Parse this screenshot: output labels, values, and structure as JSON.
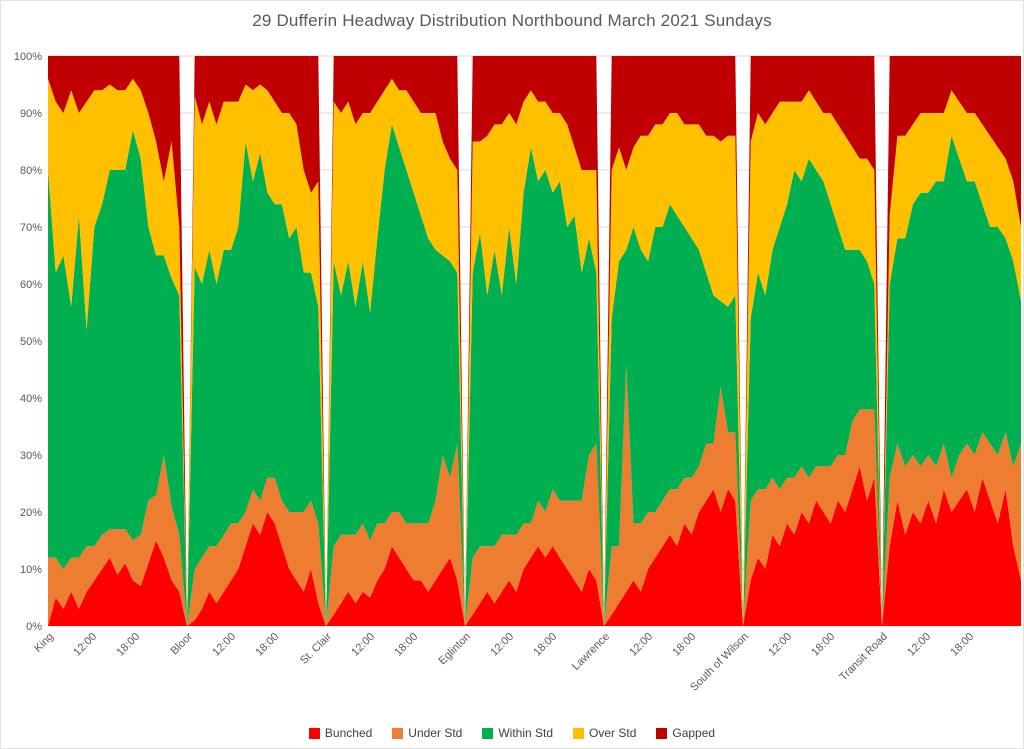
{
  "chart_data": {
    "type": "area",
    "stacked": "percent",
    "title": "29 Dufferin  Headway Distribution Northbound March 2021 Sundays",
    "title_color": "#595959",
    "axis_label_color": "#595959",
    "gridline_color": "#d9d9d9",
    "background_color": "#ffffff",
    "ylim": [
      0,
      100
    ],
    "y_ticks": [
      "0%",
      "10%",
      "20%",
      "30%",
      "40%",
      "50%",
      "60%",
      "70%",
      "80%",
      "90%",
      "100%"
    ],
    "block_time_ticks": [
      "12:00",
      "18:00"
    ],
    "legend_position": "bottom",
    "series": [
      {
        "name": "Bunched",
        "color": "#ff0000"
      },
      {
        "name": "Under Std",
        "color": "#ed7d31"
      },
      {
        "name": "Within Std",
        "color": "#00b050"
      },
      {
        "name": "Over Std",
        "color": "#ffc000"
      },
      {
        "name": "Gapped",
        "color": "#c00000"
      }
    ],
    "blocks": [
      {
        "station": "King",
        "values": [
          [
            0,
            12,
            68,
            16,
            4
          ],
          [
            5,
            7,
            50,
            30,
            8
          ],
          [
            3,
            7,
            55,
            25,
            10
          ],
          [
            6,
            6,
            44,
            38,
            6
          ],
          [
            3,
            9,
            60,
            18,
            10
          ],
          [
            6,
            8,
            38,
            40,
            8
          ],
          [
            8,
            6,
            56,
            24,
            6
          ],
          [
            10,
            6,
            58,
            20,
            6
          ],
          [
            12,
            5,
            63,
            15,
            5
          ],
          [
            9,
            8,
            63,
            14,
            6
          ],
          [
            11,
            6,
            63,
            14,
            6
          ],
          [
            8,
            7,
            72,
            9,
            4
          ],
          [
            7,
            9,
            66,
            12,
            6
          ],
          [
            11,
            11,
            48,
            20,
            10
          ],
          [
            15,
            8,
            42,
            20,
            15
          ],
          [
            12,
            18,
            35,
            13,
            22
          ],
          [
            8,
            13,
            40,
            24,
            15
          ],
          [
            6,
            10,
            42,
            12,
            30
          ]
        ]
      },
      {
        "station": "Bloor",
        "values": [
          [
            1,
            9,
            53,
            30,
            7
          ],
          [
            3,
            9,
            48,
            28,
            12
          ],
          [
            6,
            8,
            52,
            26,
            8
          ],
          [
            4,
            10,
            46,
            28,
            12
          ],
          [
            6,
            10,
            50,
            26,
            8
          ],
          [
            8,
            10,
            48,
            26,
            8
          ],
          [
            10,
            8,
            52,
            22,
            8
          ],
          [
            14,
            6,
            65,
            10,
            5
          ],
          [
            18,
            6,
            54,
            16,
            6
          ],
          [
            16,
            6,
            61,
            12,
            5
          ],
          [
            20,
            6,
            50,
            18,
            6
          ],
          [
            18,
            8,
            48,
            18,
            8
          ],
          [
            14,
            8,
            52,
            16,
            10
          ],
          [
            10,
            10,
            48,
            22,
            10
          ],
          [
            8,
            12,
            50,
            18,
            12
          ],
          [
            6,
            14,
            42,
            18,
            20
          ],
          [
            10,
            12,
            40,
            14,
            24
          ],
          [
            4,
            14,
            38,
            22,
            22
          ]
        ]
      },
      {
        "station": "St. Clair",
        "values": [
          [
            2,
            12,
            50,
            28,
            8
          ],
          [
            4,
            12,
            42,
            32,
            10
          ],
          [
            6,
            10,
            48,
            28,
            8
          ],
          [
            4,
            12,
            40,
            32,
            12
          ],
          [
            6,
            12,
            46,
            26,
            10
          ],
          [
            5,
            10,
            40,
            35,
            10
          ],
          [
            8,
            10,
            50,
            24,
            8
          ],
          [
            10,
            8,
            62,
            14,
            6
          ],
          [
            14,
            6,
            68,
            8,
            4
          ],
          [
            12,
            8,
            64,
            10,
            6
          ],
          [
            10,
            8,
            62,
            14,
            6
          ],
          [
            8,
            10,
            58,
            16,
            8
          ],
          [
            8,
            10,
            54,
            18,
            10
          ],
          [
            6,
            12,
            50,
            22,
            10
          ],
          [
            8,
            14,
            44,
            24,
            10
          ],
          [
            10,
            20,
            35,
            20,
            15
          ],
          [
            12,
            14,
            38,
            18,
            18
          ],
          [
            8,
            24,
            30,
            18,
            20
          ]
        ]
      },
      {
        "station": "Eglinton",
        "values": [
          [
            2,
            10,
            50,
            23,
            15
          ],
          [
            4,
            10,
            55,
            16,
            15
          ],
          [
            6,
            8,
            44,
            28,
            14
          ],
          [
            4,
            10,
            52,
            22,
            12
          ],
          [
            6,
            10,
            42,
            30,
            12
          ],
          [
            8,
            8,
            54,
            20,
            10
          ],
          [
            6,
            10,
            44,
            28,
            12
          ],
          [
            10,
            8,
            58,
            16,
            8
          ],
          [
            12,
            6,
            66,
            10,
            6
          ],
          [
            14,
            8,
            56,
            14,
            8
          ],
          [
            12,
            8,
            60,
            12,
            8
          ],
          [
            14,
            10,
            52,
            14,
            10
          ],
          [
            12,
            10,
            56,
            12,
            10
          ],
          [
            10,
            12,
            48,
            18,
            12
          ],
          [
            8,
            14,
            50,
            12,
            16
          ],
          [
            6,
            16,
            40,
            18,
            20
          ],
          [
            10,
            20,
            38,
            12,
            20
          ],
          [
            8,
            24,
            30,
            18,
            20
          ]
        ]
      },
      {
        "station": "Lawrence",
        "values": [
          [
            2,
            12,
            40,
            26,
            20
          ],
          [
            4,
            10,
            50,
            20,
            16
          ],
          [
            6,
            40,
            20,
            14,
            20
          ],
          [
            8,
            10,
            52,
            14,
            16
          ],
          [
            6,
            12,
            48,
            20,
            14
          ],
          [
            10,
            10,
            44,
            22,
            14
          ],
          [
            12,
            8,
            50,
            18,
            12
          ],
          [
            14,
            8,
            48,
            18,
            12
          ],
          [
            16,
            8,
            50,
            16,
            10
          ],
          [
            14,
            10,
            48,
            18,
            10
          ],
          [
            18,
            8,
            44,
            18,
            12
          ],
          [
            16,
            10,
            42,
            20,
            12
          ],
          [
            20,
            8,
            38,
            22,
            12
          ],
          [
            22,
            10,
            30,
            24,
            14
          ],
          [
            24,
            8,
            26,
            28,
            14
          ],
          [
            20,
            22,
            15,
            28,
            15
          ],
          [
            24,
            10,
            22,
            30,
            14
          ],
          [
            22,
            12,
            24,
            28,
            14
          ]
        ]
      },
      {
        "station": "South of Wilson",
        "values": [
          [
            8,
            14,
            32,
            31,
            15
          ],
          [
            12,
            12,
            38,
            28,
            10
          ],
          [
            10,
            14,
            34,
            30,
            12
          ],
          [
            16,
            10,
            40,
            24,
            10
          ],
          [
            14,
            10,
            46,
            22,
            8
          ],
          [
            18,
            8,
            48,
            18,
            8
          ],
          [
            16,
            10,
            54,
            12,
            8
          ],
          [
            20,
            8,
            50,
            14,
            8
          ],
          [
            18,
            8,
            56,
            12,
            6
          ],
          [
            22,
            6,
            52,
            12,
            8
          ],
          [
            20,
            8,
            50,
            12,
            10
          ],
          [
            18,
            10,
            46,
            16,
            10
          ],
          [
            22,
            8,
            40,
            18,
            12
          ],
          [
            20,
            10,
            36,
            20,
            14
          ],
          [
            24,
            12,
            30,
            18,
            16
          ],
          [
            28,
            10,
            28,
            16,
            18
          ],
          [
            22,
            16,
            26,
            18,
            18
          ],
          [
            26,
            12,
            22,
            20,
            20
          ]
        ]
      },
      {
        "station": "Transit Road",
        "values": [
          [
            14,
            12,
            34,
            12,
            28
          ],
          [
            22,
            10,
            36,
            18,
            14
          ],
          [
            16,
            12,
            40,
            18,
            14
          ],
          [
            20,
            10,
            44,
            14,
            12
          ],
          [
            18,
            10,
            48,
            14,
            10
          ],
          [
            22,
            8,
            46,
            14,
            10
          ],
          [
            18,
            10,
            50,
            12,
            10
          ],
          [
            24,
            8,
            46,
            12,
            10
          ],
          [
            20,
            6,
            60,
            8,
            6
          ],
          [
            22,
            8,
            52,
            10,
            8
          ],
          [
            24,
            8,
            46,
            12,
            10
          ],
          [
            20,
            10,
            48,
            12,
            10
          ],
          [
            26,
            8,
            40,
            14,
            12
          ],
          [
            22,
            10,
            38,
            16,
            14
          ],
          [
            18,
            12,
            40,
            14,
            16
          ],
          [
            24,
            10,
            34,
            14,
            18
          ],
          [
            14,
            14,
            36,
            14,
            22
          ],
          [
            8,
            24,
            25,
            13,
            30
          ]
        ]
      }
    ]
  }
}
